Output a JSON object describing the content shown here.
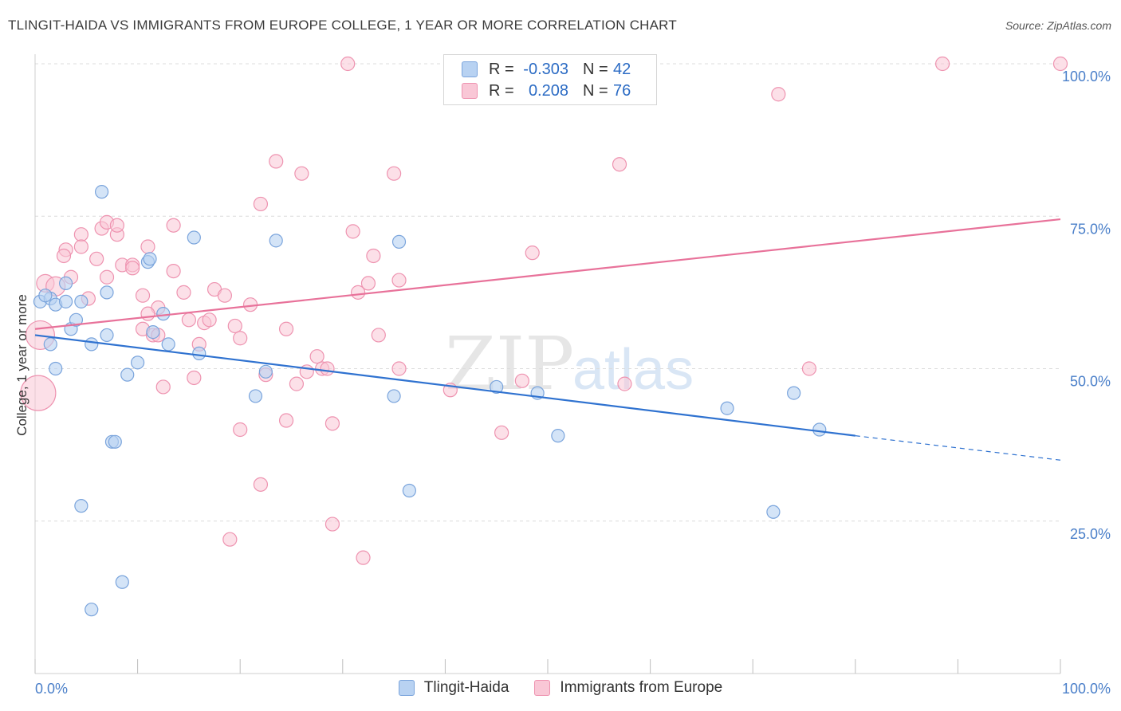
{
  "title": "TLINGIT-HAIDA VS IMMIGRANTS FROM EUROPE COLLEGE, 1 YEAR OR MORE CORRELATION CHART",
  "source": "Source: ZipAtlas.com",
  "watermark": {
    "zip": "ZIP",
    "atlas": "atlas"
  },
  "legend_top": {
    "rows": [
      {
        "r_label": "R =",
        "r_value": "-0.303",
        "n_label": "N =",
        "n_value": "42",
        "fill": "#b8d2f2",
        "stroke": "#7aa4dc"
      },
      {
        "r_label": "R =",
        "r_value": "0.208",
        "n_label": "N =",
        "n_value": "76",
        "fill": "#f9c7d6",
        "stroke": "#ee93b0"
      }
    ]
  },
  "legend_bottom": {
    "items": [
      {
        "label": "Tlingit-Haida",
        "fill": "#b8d2f2",
        "stroke": "#7aa4dc"
      },
      {
        "label": "Immigrants from Europe",
        "fill": "#f9c7d6",
        "stroke": "#ee93b0"
      }
    ]
  },
  "chart_data": {
    "type": "scatter",
    "title": "TLINGIT-HAIDA VS IMMIGRANTS FROM EUROPE COLLEGE, 1 YEAR OR MORE CORRELATION CHART",
    "xlabel": "",
    "ylabel": "College, 1 year or more",
    "xlim": [
      0,
      100
    ],
    "ylim": [
      0,
      102
    ],
    "x_tick_labels": [
      "0.0%",
      "100.0%"
    ],
    "y_ticks": [
      25,
      50,
      75,
      100
    ],
    "y_tick_labels": [
      "25.0%",
      "50.0%",
      "75.0%",
      "100.0%"
    ],
    "grid": true,
    "legend_position": "top-center",
    "colors": {
      "blue": "#2f72d0",
      "pink": "#e8729a",
      "tick_label": "#4a7fc9"
    },
    "series": [
      {
        "name": "Tlingit-Haida",
        "color": "#7aa4dc",
        "fill": "#b8d2f2",
        "points": [
          [
            0.5,
            61.0
          ],
          [
            1.5,
            61.5
          ],
          [
            2.0,
            60.5
          ],
          [
            3.0,
            64.0
          ],
          [
            3.5,
            56.5
          ],
          [
            1.5,
            54.0
          ],
          [
            2.0,
            50.0
          ],
          [
            4.0,
            58.0
          ],
          [
            4.5,
            61.0
          ],
          [
            6.5,
            79.0
          ],
          [
            7.0,
            62.5
          ],
          [
            7.0,
            55.5
          ],
          [
            5.5,
            54.0
          ],
          [
            9.0,
            49.0
          ],
          [
            10.0,
            51.0
          ],
          [
            11.0,
            67.5
          ],
          [
            11.5,
            56.0
          ],
          [
            12.5,
            59.0
          ],
          [
            13.0,
            54.0
          ],
          [
            15.5,
            71.5
          ],
          [
            16.0,
            52.5
          ],
          [
            7.5,
            38.0
          ],
          [
            7.8,
            38.0
          ],
          [
            4.5,
            27.5
          ],
          [
            8.5,
            15.0
          ],
          [
            5.5,
            10.5
          ],
          [
            23.5,
            71.0
          ],
          [
            22.5,
            49.5
          ],
          [
            21.5,
            45.5
          ],
          [
            35.0,
            45.5
          ],
          [
            35.5,
            70.8
          ],
          [
            36.5,
            30.0
          ],
          [
            45.0,
            47.0
          ],
          [
            49.0,
            46.0
          ],
          [
            51.0,
            39.0
          ],
          [
            67.5,
            43.5
          ],
          [
            72.0,
            26.5
          ],
          [
            74.0,
            46.0
          ],
          [
            76.5,
            40.0
          ],
          [
            3.0,
            61.0
          ],
          [
            11.2,
            68.0
          ],
          [
            1.0,
            62.0
          ]
        ]
      },
      {
        "name": "Immigrants from Europe",
        "color": "#ee93b0",
        "fill": "#f9c7d6",
        "points": [
          [
            30.5,
            100
          ],
          [
            88.5,
            100
          ],
          [
            100,
            100
          ],
          [
            72.5,
            95.0
          ],
          [
            23.5,
            84.0
          ],
          [
            26.0,
            82.0
          ],
          [
            35.0,
            82.0
          ],
          [
            57.0,
            83.5
          ],
          [
            22.0,
            77.0
          ],
          [
            6.5,
            73.0
          ],
          [
            4.5,
            72.0
          ],
          [
            7.0,
            74.0
          ],
          [
            8.0,
            72.0
          ],
          [
            13.5,
            73.5
          ],
          [
            31.0,
            72.5
          ],
          [
            3.0,
            69.5
          ],
          [
            4.5,
            70.0
          ],
          [
            2.8,
            68.5
          ],
          [
            6.0,
            68.0
          ],
          [
            8.5,
            67.0
          ],
          [
            9.5,
            67.0
          ],
          [
            10.5,
            62.0
          ],
          [
            11.0,
            70.0
          ],
          [
            13.5,
            66.0
          ],
          [
            14.5,
            62.5
          ],
          [
            17.5,
            63.0
          ],
          [
            18.5,
            62.0
          ],
          [
            12.0,
            60.0
          ],
          [
            15.0,
            58.0
          ],
          [
            16.5,
            57.5
          ],
          [
            19.5,
            57.0
          ],
          [
            10.5,
            56.5
          ],
          [
            11.5,
            55.5
          ],
          [
            16.0,
            54.0
          ],
          [
            20.0,
            55.0
          ],
          [
            24.5,
            56.5
          ],
          [
            31.5,
            62.5
          ],
          [
            32.5,
            64.0
          ],
          [
            33.0,
            68.5
          ],
          [
            35.5,
            64.5
          ],
          [
            33.5,
            55.5
          ],
          [
            27.5,
            52.0
          ],
          [
            28.0,
            50.0
          ],
          [
            28.5,
            50.0
          ],
          [
            35.5,
            50.0
          ],
          [
            25.5,
            47.5
          ],
          [
            22.5,
            49.0
          ],
          [
            15.5,
            48.5
          ],
          [
            12.5,
            47.0
          ],
          [
            20.0,
            40.0
          ],
          [
            24.5,
            41.5
          ],
          [
            29.0,
            41.0
          ],
          [
            40.5,
            46.5
          ],
          [
            47.5,
            48.0
          ],
          [
            45.5,
            39.5
          ],
          [
            57.5,
            47.5
          ],
          [
            48.5,
            69.0
          ],
          [
            75.5,
            50.0
          ],
          [
            22.0,
            31.0
          ],
          [
            29.0,
            24.5
          ],
          [
            19.0,
            22.0
          ],
          [
            32.0,
            19.0
          ],
          [
            5.2,
            61.5
          ],
          [
            1.0,
            64.0
          ],
          [
            0.5,
            55.5
          ],
          [
            0.3,
            46.0
          ],
          [
            2.0,
            63.5
          ],
          [
            17.0,
            58.0
          ],
          [
            21.0,
            60.5
          ],
          [
            9.5,
            66.5
          ],
          [
            26.5,
            49.5
          ],
          [
            7.0,
            65.0
          ],
          [
            12.0,
            55.5
          ],
          [
            3.5,
            65.0
          ],
          [
            11.0,
            59.0
          ],
          [
            8.0,
            73.5
          ]
        ]
      }
    ],
    "trend_lines": [
      {
        "series": "Tlingit-Haida",
        "solid": [
          [
            0,
            55.5
          ],
          [
            80,
            39.0
          ]
        ],
        "dashed": [
          [
            80,
            39.0
          ],
          [
            100,
            35.0
          ]
        ]
      },
      {
        "series": "Immigrants from Europe",
        "solid": [
          [
            0,
            56.5
          ],
          [
            100,
            74.5
          ]
        ]
      }
    ]
  }
}
